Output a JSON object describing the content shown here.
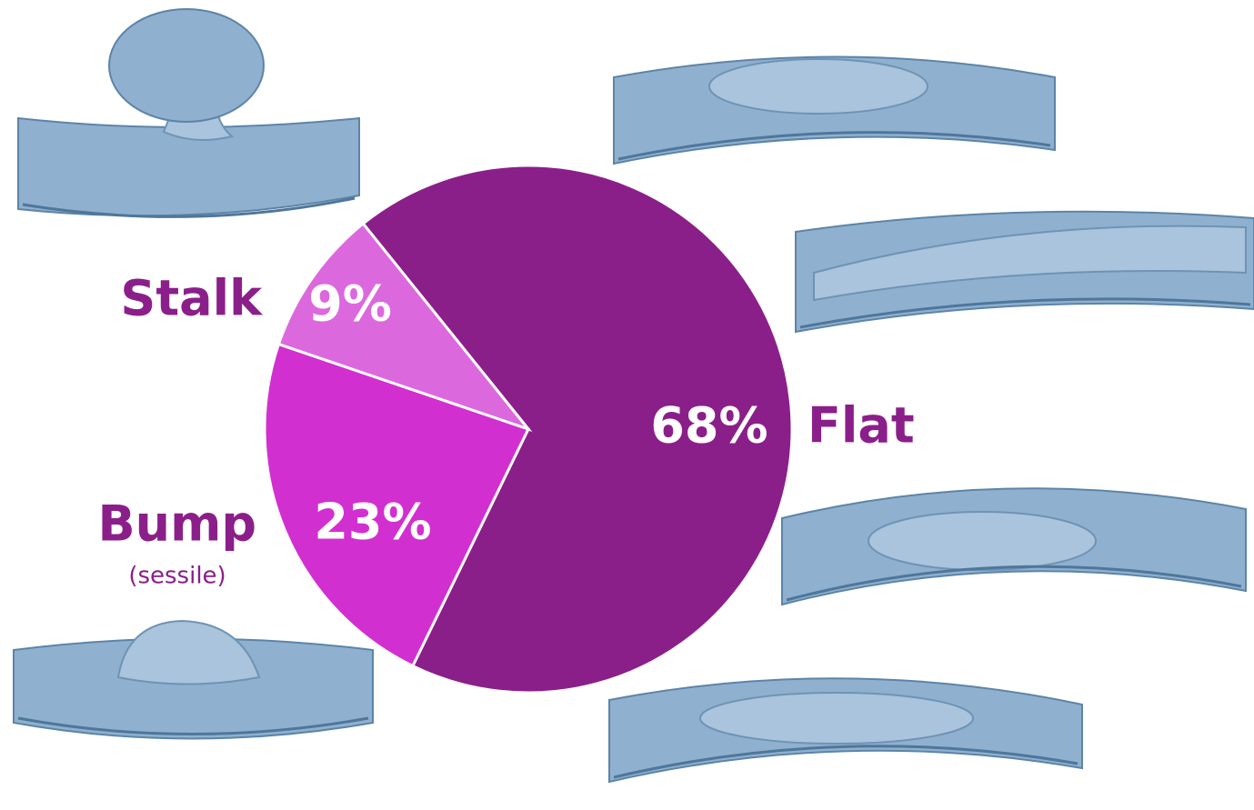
{
  "chart_data": {
    "type": "pie",
    "categories": [
      "Flat",
      "Bump",
      "Stalk"
    ],
    "values": [
      68,
      23,
      9
    ],
    "value_labels": [
      "68%",
      "23%",
      "9%"
    ],
    "colors": [
      "#8b1f8a",
      "#d22fd0",
      "#dc68de"
    ],
    "annotations": [
      "(sessile)"
    ]
  }
}
